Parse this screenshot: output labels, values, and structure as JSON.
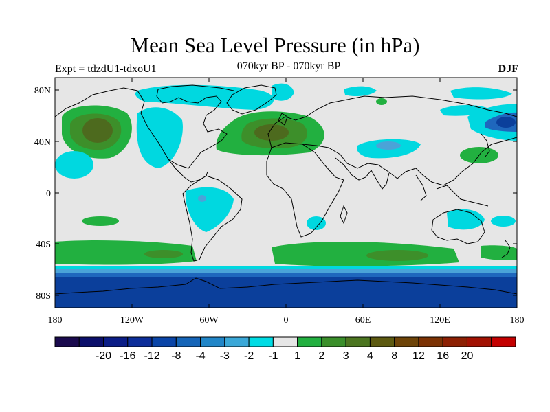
{
  "title": "Mean Sea Level Pressure (in hPa)",
  "subtitle_left": "Expt = tdzdU1-tdxoU1",
  "subtitle_center": "070kyr BP - 070kyr BP",
  "subtitle_right": "DJF",
  "colors": {
    "ocean_background": "#e6e6e6",
    "neg_strong": "#0b3f9b",
    "neg_mid": "#1f67bd",
    "neg_light": "#4aa3d8",
    "neg_weak": "#00d8e0",
    "pos_weak": "#22b040",
    "pos_mid": "#3d8f2a",
    "pos_strong": "#4d6a1e",
    "coastline": "#000000"
  },
  "map": {
    "y_tick_labels": [
      "80N",
      "40N",
      "0",
      "40S",
      "80S"
    ],
    "x_tick_labels": [
      "180",
      "120W",
      "60W",
      "0",
      "60E",
      "120E",
      "180"
    ]
  },
  "colorbar": {
    "labels": [
      "-20",
      "-16",
      "-12",
      "-8",
      "-4",
      "-3",
      "-2",
      "-1",
      "1",
      "2",
      "3",
      "4",
      "8",
      "12",
      "16",
      "20"
    ],
    "colors": [
      "#1a0a4e",
      "#0b0f6b",
      "#0b1d87",
      "#0c2e9a",
      "#0a45a8",
      "#1565b8",
      "#2186c8",
      "#3aa8d8",
      "#00dce4",
      "#e6e6e6",
      "#22b040",
      "#3a8f2a",
      "#4c7620",
      "#5d5a10",
      "#6e4408",
      "#7c3204",
      "#8d2003",
      "#a21202",
      "#c40000"
    ]
  }
}
